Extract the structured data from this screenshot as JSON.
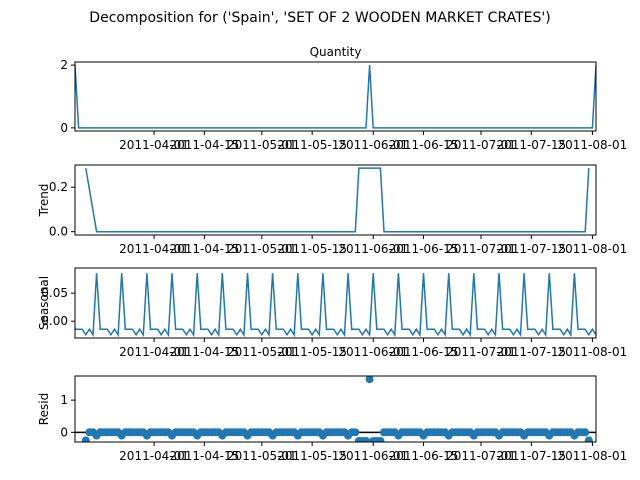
{
  "figure": {
    "suptitle": "Decomposition for ('Spain', 'SET OF 2 WOODEN MARKET CRATES')"
  },
  "colors": {
    "series": "#1f77b4",
    "axis": "#000000",
    "zero_line": "#000000"
  },
  "x_axis": {
    "start": "2011-03-10",
    "end": "2011-08-02",
    "tick_dates": [
      "2011-04-01",
      "2011-04-15",
      "2011-05-01",
      "2011-05-15",
      "2011-06-01",
      "2011-06-15",
      "2011-07-01",
      "2011-07-15",
      "2011-08-01"
    ]
  },
  "chart_data": [
    {
      "type": "line",
      "title": "Quantity",
      "ylabel": "",
      "ylim": [
        -0.1,
        2.1
      ],
      "yticks": [
        0,
        2
      ],
      "ytick_labels": [
        "0",
        "2"
      ],
      "x_start": "2011-03-10",
      "x_end": "2011-08-02",
      "spikes": [
        {
          "date": "2011-03-10",
          "value": 2
        },
        {
          "date": "2011-05-31",
          "value": 2
        },
        {
          "date": "2011-08-02",
          "value": 2
        }
      ],
      "baseline": 0
    },
    {
      "type": "line",
      "title": "",
      "ylabel": "Trend",
      "ylim": [
        -0.015,
        0.3
      ],
      "yticks": [
        0,
        0.2
      ],
      "ytick_labels": [
        "0.0",
        "0.2"
      ],
      "points": [
        {
          "date": "2011-03-13",
          "value": 0.286
        },
        {
          "date": "2011-03-16",
          "value": 0
        },
        {
          "date": "2011-05-27",
          "value": 0
        },
        {
          "date": "2011-05-28",
          "value": 0.286
        },
        {
          "date": "2011-06-03",
          "value": 0.286
        },
        {
          "date": "2011-06-04",
          "value": 0
        },
        {
          "date": "2011-07-30",
          "value": 0
        },
        {
          "date": "2011-07-31",
          "value": 0.286
        }
      ]
    },
    {
      "type": "line",
      "title": "",
      "ylabel": "Seasonal",
      "ylim": [
        -0.03,
        0.095
      ],
      "yticks": [
        0,
        0.05
      ],
      "ytick_labels": [
        "0.00",
        "0.05"
      ],
      "period_days": 7,
      "first_peak": "2011-03-16",
      "pattern": [
        0.0857,
        -0.0143,
        -0.0143,
        -0.0143,
        -0.0243,
        -0.0143,
        -0.0243
      ]
    },
    {
      "type": "scatter",
      "title": "",
      "ylabel": "Resid",
      "ylim": [
        -0.3,
        1.75
      ],
      "yticks": [
        0,
        1
      ],
      "ytick_labels": [
        "0",
        "1"
      ],
      "zero_line": true,
      "points": [
        {
          "date": "2011-03-13",
          "value": -0.25
        },
        {
          "date": "2011-03-14",
          "value": 0
        },
        {
          "date": "2011-03-15",
          "value": 0
        },
        {
          "date": "2011-03-16",
          "value": -0.1
        },
        {
          "date": "2011-03-17",
          "value": 0
        },
        {
          "date": "2011-03-18",
          "value": 0
        },
        {
          "date": "2011-03-19",
          "value": 0
        },
        {
          "date": "2011-03-20",
          "value": 0
        },
        {
          "date": "2011-03-21",
          "value": 0
        },
        {
          "date": "2011-03-22",
          "value": 0
        },
        {
          "date": "2011-03-23",
          "value": -0.1
        },
        {
          "date": "2011-03-24",
          "value": 0
        },
        {
          "date": "2011-03-25",
          "value": 0
        },
        {
          "date": "2011-03-26",
          "value": 0
        },
        {
          "date": "2011-03-27",
          "value": 0
        },
        {
          "date": "2011-03-28",
          "value": 0
        },
        {
          "date": "2011-03-29",
          "value": 0
        },
        {
          "date": "2011-03-30",
          "value": -0.1
        },
        {
          "date": "2011-03-31",
          "value": 0
        },
        {
          "date": "2011-04-01",
          "value": 0
        },
        {
          "date": "2011-04-02",
          "value": 0
        },
        {
          "date": "2011-04-03",
          "value": 0
        },
        {
          "date": "2011-04-04",
          "value": 0
        },
        {
          "date": "2011-04-05",
          "value": 0
        },
        {
          "date": "2011-04-06",
          "value": -0.1
        },
        {
          "date": "2011-04-07",
          "value": 0
        },
        {
          "date": "2011-04-08",
          "value": 0
        },
        {
          "date": "2011-04-09",
          "value": 0
        },
        {
          "date": "2011-04-10",
          "value": 0
        },
        {
          "date": "2011-04-11",
          "value": 0
        },
        {
          "date": "2011-04-12",
          "value": 0
        },
        {
          "date": "2011-04-13",
          "value": -0.1
        },
        {
          "date": "2011-04-14",
          "value": 0
        },
        {
          "date": "2011-04-15",
          "value": 0
        },
        {
          "date": "2011-04-16",
          "value": 0
        },
        {
          "date": "2011-04-17",
          "value": 0
        },
        {
          "date": "2011-04-18",
          "value": 0
        },
        {
          "date": "2011-04-19",
          "value": 0
        },
        {
          "date": "2011-04-20",
          "value": -0.1
        },
        {
          "date": "2011-04-21",
          "value": 0
        },
        {
          "date": "2011-04-22",
          "value": 0
        },
        {
          "date": "2011-04-23",
          "value": 0
        },
        {
          "date": "2011-04-24",
          "value": 0
        },
        {
          "date": "2011-04-25",
          "value": 0
        },
        {
          "date": "2011-04-26",
          "value": 0
        },
        {
          "date": "2011-04-27",
          "value": -0.1
        },
        {
          "date": "2011-04-28",
          "value": 0
        },
        {
          "date": "2011-04-29",
          "value": 0
        },
        {
          "date": "2011-04-30",
          "value": 0
        },
        {
          "date": "2011-05-01",
          "value": 0
        },
        {
          "date": "2011-05-02",
          "value": 0
        },
        {
          "date": "2011-05-03",
          "value": 0
        },
        {
          "date": "2011-05-04",
          "value": -0.1
        },
        {
          "date": "2011-05-05",
          "value": 0
        },
        {
          "date": "2011-05-06",
          "value": 0
        },
        {
          "date": "2011-05-07",
          "value": 0
        },
        {
          "date": "2011-05-08",
          "value": 0
        },
        {
          "date": "2011-05-09",
          "value": 0
        },
        {
          "date": "2011-05-10",
          "value": 0
        },
        {
          "date": "2011-05-11",
          "value": -0.1
        },
        {
          "date": "2011-05-12",
          "value": 0
        },
        {
          "date": "2011-05-13",
          "value": 0
        },
        {
          "date": "2011-05-14",
          "value": 0
        },
        {
          "date": "2011-05-15",
          "value": 0
        },
        {
          "date": "2011-05-16",
          "value": 0
        },
        {
          "date": "2011-05-17",
          "value": 0
        },
        {
          "date": "2011-05-18",
          "value": -0.1
        },
        {
          "date": "2011-05-19",
          "value": 0
        },
        {
          "date": "2011-05-20",
          "value": 0
        },
        {
          "date": "2011-05-21",
          "value": 0
        },
        {
          "date": "2011-05-22",
          "value": 0
        },
        {
          "date": "2011-05-23",
          "value": 0
        },
        {
          "date": "2011-05-24",
          "value": 0
        },
        {
          "date": "2011-05-25",
          "value": -0.1
        },
        {
          "date": "2011-05-26",
          "value": 0
        },
        {
          "date": "2011-05-27",
          "value": 0
        },
        {
          "date": "2011-05-28",
          "value": -0.27
        },
        {
          "date": "2011-05-29",
          "value": -0.27
        },
        {
          "date": "2011-05-30",
          "value": -0.27
        },
        {
          "date": "2011-05-31",
          "value": 1.65
        },
        {
          "date": "2011-06-01",
          "value": -0.27
        },
        {
          "date": "2011-06-02",
          "value": -0.27
        },
        {
          "date": "2011-06-03",
          "value": -0.27
        },
        {
          "date": "2011-06-04",
          "value": 0
        },
        {
          "date": "2011-06-05",
          "value": 0
        },
        {
          "date": "2011-06-06",
          "value": 0
        },
        {
          "date": "2011-06-07",
          "value": 0
        },
        {
          "date": "2011-06-08",
          "value": -0.1
        },
        {
          "date": "2011-06-09",
          "value": 0
        },
        {
          "date": "2011-06-10",
          "value": 0
        },
        {
          "date": "2011-06-11",
          "value": 0
        },
        {
          "date": "2011-06-12",
          "value": 0
        },
        {
          "date": "2011-06-13",
          "value": 0
        },
        {
          "date": "2011-06-14",
          "value": 0
        },
        {
          "date": "2011-06-15",
          "value": -0.1
        },
        {
          "date": "2011-06-16",
          "value": 0
        },
        {
          "date": "2011-06-17",
          "value": 0
        },
        {
          "date": "2011-06-18",
          "value": 0
        },
        {
          "date": "2011-06-19",
          "value": 0
        },
        {
          "date": "2011-06-20",
          "value": 0
        },
        {
          "date": "2011-06-21",
          "value": 0
        },
        {
          "date": "2011-06-22",
          "value": -0.1
        },
        {
          "date": "2011-06-23",
          "value": 0
        },
        {
          "date": "2011-06-24",
          "value": 0
        },
        {
          "date": "2011-06-25",
          "value": 0
        },
        {
          "date": "2011-06-26",
          "value": 0
        },
        {
          "date": "2011-06-27",
          "value": 0
        },
        {
          "date": "2011-06-28",
          "value": 0
        },
        {
          "date": "2011-06-29",
          "value": -0.1
        },
        {
          "date": "2011-06-30",
          "value": 0
        },
        {
          "date": "2011-07-01",
          "value": 0
        },
        {
          "date": "2011-07-02",
          "value": 0
        },
        {
          "date": "2011-07-03",
          "value": 0
        },
        {
          "date": "2011-07-04",
          "value": 0
        },
        {
          "date": "2011-07-05",
          "value": 0
        },
        {
          "date": "2011-07-06",
          "value": -0.1
        },
        {
          "date": "2011-07-07",
          "value": 0
        },
        {
          "date": "2011-07-08",
          "value": 0
        },
        {
          "date": "2011-07-09",
          "value": 0
        },
        {
          "date": "2011-07-10",
          "value": 0
        },
        {
          "date": "2011-07-11",
          "value": 0
        },
        {
          "date": "2011-07-12",
          "value": 0
        },
        {
          "date": "2011-07-13",
          "value": -0.1
        },
        {
          "date": "2011-07-14",
          "value": 0
        },
        {
          "date": "2011-07-15",
          "value": 0
        },
        {
          "date": "2011-07-16",
          "value": 0
        },
        {
          "date": "2011-07-17",
          "value": 0
        },
        {
          "date": "2011-07-18",
          "value": 0
        },
        {
          "date": "2011-07-19",
          "value": 0
        },
        {
          "date": "2011-07-20",
          "value": -0.1
        },
        {
          "date": "2011-07-21",
          "value": 0
        },
        {
          "date": "2011-07-22",
          "value": 0
        },
        {
          "date": "2011-07-23",
          "value": 0
        },
        {
          "date": "2011-07-24",
          "value": 0
        },
        {
          "date": "2011-07-25",
          "value": 0
        },
        {
          "date": "2011-07-26",
          "value": 0
        },
        {
          "date": "2011-07-27",
          "value": -0.1
        },
        {
          "date": "2011-07-28",
          "value": 0
        },
        {
          "date": "2011-07-29",
          "value": 0
        },
        {
          "date": "2011-07-30",
          "value": 0
        },
        {
          "date": "2011-07-31",
          "value": -0.25
        }
      ]
    }
  ]
}
